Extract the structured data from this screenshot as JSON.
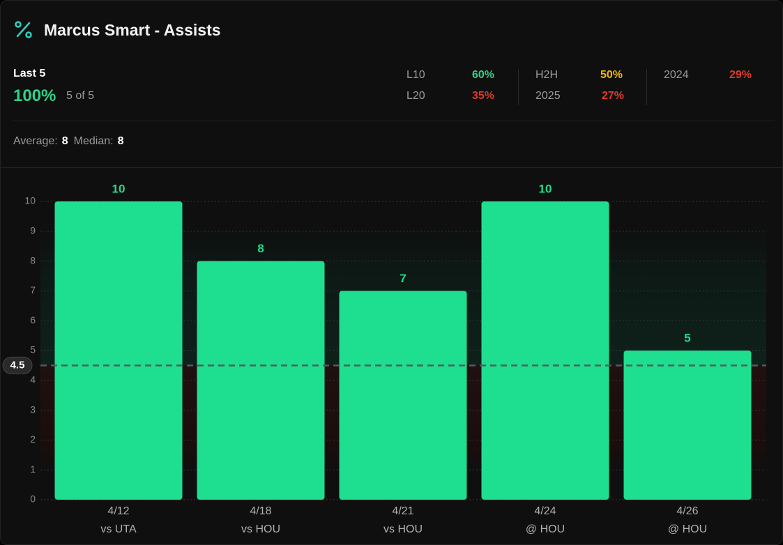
{
  "header": {
    "title": "Marcus Smart - Assists"
  },
  "summary": {
    "label": "Last 5",
    "pct": "100%",
    "count": "5 of 5"
  },
  "splits": [
    {
      "label": "L10",
      "value": "60%",
      "color": "#2ed38a"
    },
    {
      "label": "L20",
      "value": "35%",
      "color": "#e0392b"
    },
    {
      "label": "H2H",
      "value": "50%",
      "color": "#f5b800"
    },
    {
      "label": "2025",
      "value": "27%",
      "color": "#e0392b"
    },
    {
      "label": "2024",
      "value": "29%",
      "color": "#e0392b"
    }
  ],
  "stats": {
    "average_label": "Average:",
    "average": 8,
    "median_label": "Median:",
    "median": 8
  },
  "chart_data": {
    "type": "bar",
    "categories": [
      "4/12",
      "4/18",
      "4/21",
      "4/24",
      "4/26"
    ],
    "opponents": [
      "vs UTA",
      "vs HOU",
      "vs HOU",
      "@ HOU",
      "@ HOU"
    ],
    "values": [
      10,
      8,
      7,
      10,
      5
    ],
    "color": "#1ede8f",
    "threshold": 4.5,
    "ylim": [
      0,
      10
    ],
    "yticks": [
      0,
      1,
      2,
      3,
      4,
      5,
      6,
      7,
      8,
      9,
      10
    ],
    "grid": true
  }
}
